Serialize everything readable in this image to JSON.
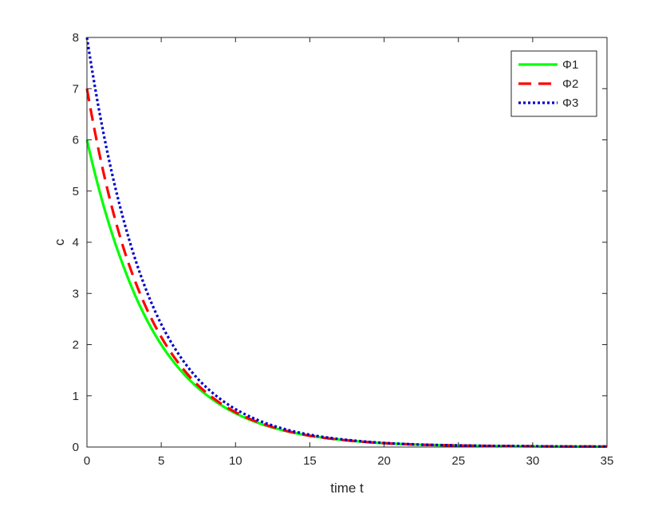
{
  "chart_data": {
    "type": "line",
    "title": "",
    "xlabel": "time t",
    "ylabel": "c",
    "xlim": [
      0,
      35
    ],
    "ylim": [
      0,
      8
    ],
    "xticks": [
      0,
      5,
      10,
      15,
      20,
      25,
      30,
      35
    ],
    "yticks": [
      0,
      1,
      2,
      3,
      4,
      5,
      6,
      7,
      8
    ],
    "grid": false,
    "legend_position": "top-right",
    "x": [
      0,
      2.5,
      5,
      7.5,
      10,
      12.5,
      15,
      17.5,
      20,
      22.5,
      25,
      27.5,
      30,
      32.5,
      35
    ],
    "series": [
      {
        "name": "Φ1",
        "color": "#00ff00",
        "style": "solid",
        "values": [
          6.0,
          3.5,
          2.0,
          1.15,
          0.66,
          0.38,
          0.22,
          0.13,
          0.075,
          0.045,
          0.03,
          0.02,
          0.015,
          0.01,
          0.01
        ]
      },
      {
        "name": "Φ2",
        "color": "#ff0000",
        "style": "dashed",
        "values": [
          7.0,
          3.85,
          2.15,
          1.2,
          0.68,
          0.39,
          0.22,
          0.13,
          0.075,
          0.045,
          0.03,
          0.02,
          0.015,
          0.01,
          0.01
        ]
      },
      {
        "name": "Φ3",
        "color": "#0000cc",
        "style": "dotted",
        "values": [
          8.0,
          4.4,
          2.4,
          1.32,
          0.74,
          0.42,
          0.24,
          0.14,
          0.08,
          0.048,
          0.032,
          0.022,
          0.016,
          0.011,
          0.01
        ]
      }
    ]
  }
}
